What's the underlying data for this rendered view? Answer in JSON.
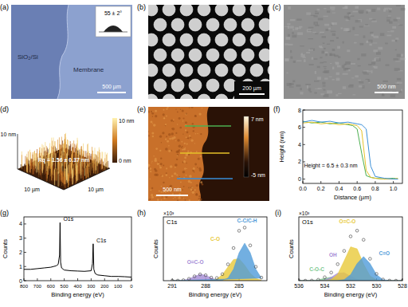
{
  "panels": [
    {
      "label": "(a)",
      "substrate": "SiO₂/Si",
      "membrane": "Membrane",
      "scale_bar": "500 µm",
      "contact_angle": "55 ± 2°"
    },
    {
      "label": "(b)",
      "scale_bar": "200 µm"
    },
    {
      "label": "(c)",
      "scale_bar": "500 nm"
    },
    {
      "label": "(d)",
      "z_axis": "10 nm",
      "x_axis": "10 µm",
      "y_axis": "10 µm",
      "roughness": "Rq = 1.56 ± 0.37 nm",
      "colorbar_max": "10 nm",
      "colorbar_min": "0 nm"
    },
    {
      "label": "(e)",
      "colorbar_max": "7 nm",
      "colorbar_min": "-5 nm",
      "scale_bar": "500 nm"
    }
  ],
  "chart_data": [
    {
      "label": "(f)",
      "type": "line",
      "xlabel": "Distance (µm)",
      "ylabel": "Height (nm)",
      "x": [
        0,
        0.1,
        0.2,
        0.3,
        0.4,
        0.5,
        0.55,
        0.6,
        0.65,
        0.7,
        0.75,
        0.8,
        0.9,
        1.0,
        1.05
      ],
      "series": [
        {
          "color": "#4caf50",
          "values": [
            6.7,
            6.5,
            6.6,
            6.4,
            6.5,
            6.3,
            6.2,
            5.8,
            3.0,
            0.4,
            0.2,
            0.1,
            0.0,
            0.1,
            0.0
          ]
        },
        {
          "color": "#e6c229",
          "values": [
            6.5,
            6.6,
            6.4,
            6.5,
            6.3,
            6.4,
            6.3,
            6.2,
            5.6,
            1.0,
            0.2,
            0.1,
            0.0,
            0.0,
            0.1
          ]
        },
        {
          "color": "#3a8fd8",
          "values": [
            6.6,
            6.8,
            6.6,
            6.7,
            6.5,
            6.6,
            6.5,
            6.4,
            6.3,
            5.8,
            1.5,
            0.3,
            0.1,
            0.0,
            0.0
          ]
        }
      ],
      "xlim": [
        0,
        1.1
      ],
      "xticks": [
        {
          "value": 0,
          "label": "0.0"
        },
        {
          "value": 0.2,
          "label": "0.2"
        },
        {
          "value": 0.4,
          "label": "0.4"
        },
        {
          "value": 0.6,
          "label": "0.6"
        },
        {
          "value": 0.8,
          "label": "0.8"
        },
        {
          "value": 1,
          "label": "1.0"
        }
      ],
      "ylim": [
        -0.5,
        8
      ],
      "yticks": [
        0,
        2,
        4,
        6,
        8
      ],
      "annotations": [
        {
          "text": "Height = 6.5 ± 0.3 nm"
        }
      ]
    },
    {
      "label": "(g)",
      "type": "line",
      "xlabel": "Binding energy (eV)",
      "ylabel": "Counts",
      "x": [
        800,
        750,
        700,
        650,
        600,
        580,
        560,
        545,
        535,
        531,
        527,
        520,
        500,
        450,
        400,
        350,
        300,
        290,
        285,
        280,
        270,
        250,
        200,
        150,
        100,
        50,
        0
      ],
      "series": [
        {
          "color": "#000000",
          "values": [
            0.8,
            0.8,
            0.85,
            0.9,
            0.95,
            1.0,
            1.05,
            1.15,
            1.8,
            4.1,
            1.3,
            0.9,
            0.75,
            0.7,
            0.68,
            0.66,
            0.7,
            1.2,
            2.6,
            0.8,
            0.5,
            0.4,
            0.35,
            0.3,
            0.3,
            0.28,
            0.25
          ]
        }
      ],
      "xlim": [
        800,
        0
      ],
      "xticks": [
        800,
        700,
        600,
        500,
        400,
        300,
        200,
        100,
        0
      ],
      "ylim": [
        0,
        4.5
      ],
      "yticks": [
        0,
        1,
        2,
        3,
        4
      ],
      "annotations": [
        {
          "text": "O1s",
          "x": 531,
          "y": 4.1
        },
        {
          "text": "C1s",
          "x": 285,
          "y": 2.6
        }
      ]
    },
    {
      "label": "(h)",
      "type": "line",
      "title": "C1s",
      "exponent": "×10³",
      "xlabel": "Binding energy (eV)",
      "ylabel": "Counts",
      "tick_labels": "x",
      "x": [
        291,
        290.5,
        290,
        289.5,
        289,
        288.5,
        288,
        287.5,
        287,
        286.5,
        286,
        285.5,
        285,
        284.5,
        284,
        283.5,
        283
      ],
      "series": [
        {
          "name": "O=C-O",
          "type": "area",
          "color": "#a58bd6",
          "values": [
            0,
            0.01,
            0.07,
            0.26,
            0.62,
            0.89,
            0.77,
            0.39,
            0.12,
            0.02,
            0,
            0,
            0,
            0,
            0,
            0,
            0
          ]
        },
        {
          "name": "C-O",
          "type": "area",
          "color": "#e8c93a",
          "values": [
            0,
            0,
            0,
            0,
            0,
            0,
            0,
            0.05,
            0.26,
            0.85,
            1.94,
            2.98,
            3.1,
            2.19,
            1.04,
            0.33,
            0.07
          ]
        },
        {
          "name": "C-C/C-H",
          "type": "area",
          "color": "#4f9bd9",
          "values": [
            0,
            0,
            0,
            0,
            0,
            0,
            0,
            0,
            0,
            0.05,
            0.37,
            1.63,
            3.94,
            5.3,
            3.94,
            1.63,
            0.37
          ]
        },
        {
          "type": "scatter",
          "marker": "circle",
          "color": "#555555",
          "values": [
            0,
            0.01,
            0.07,
            0.26,
            0.62,
            0.89,
            0.77,
            0.44,
            0.38,
            0.92,
            2.31,
            4.61,
            7.04,
            7.49,
            4.98,
            1.96,
            0.44
          ]
        }
      ],
      "xlim": [
        291.8,
        282.5
      ],
      "xticks": [
        291,
        288,
        285
      ],
      "ylim": [
        0,
        9
      ],
      "yticks": []
    },
    {
      "label": "(i)",
      "type": "line",
      "title": "O1s",
      "exponent": "×10³",
      "xlabel": "Binding energy (eV)",
      "ylabel": "Counts",
      "tick_labels": "x",
      "x": [
        536,
        535.5,
        535,
        534.5,
        534,
        533.5,
        533,
        532.5,
        532,
        531.5,
        531,
        530.5,
        530,
        529.5,
        529,
        528.5,
        528
      ],
      "series": [
        {
          "name": "C-O-C",
          "type": "area",
          "color": "#7cc98e",
          "values": [
            0,
            0,
            0.02,
            0.12,
            0.35,
            0.5,
            0.35,
            0.12,
            0.02,
            0,
            0,
            0,
            0,
            0,
            0,
            0,
            0
          ]
        },
        {
          "name": "OH",
          "type": "area",
          "color": "#a58bd6",
          "values": [
            0,
            0,
            0,
            0.01,
            0.11,
            0.49,
            1.06,
            1.13,
            0.61,
            0.16,
            0.02,
            0,
            0,
            0,
            0,
            0,
            0
          ]
        },
        {
          "name": "O=C-O",
          "type": "area",
          "color": "#e8c93a",
          "values": [
            0,
            0,
            0,
            0,
            0.02,
            0.16,
            0.91,
            2.8,
            4.77,
            4.49,
            2.35,
            0.68,
            0.11,
            0.01,
            0,
            0,
            0
          ]
        },
        {
          "name": "C=O",
          "type": "area",
          "color": "#4f9bd9",
          "values": [
            0,
            0,
            0,
            0,
            0,
            0,
            0.01,
            0.15,
            0.85,
            2.41,
            3.4,
            2.41,
            0.85,
            0.15,
            0.01,
            0,
            0
          ]
        },
        {
          "type": "scatter",
          "marker": "circle",
          "color": "#555555",
          "values": [
            0,
            0,
            0.02,
            0.13,
            0.48,
            1.15,
            2.33,
            4.2,
            6.25,
            7.06,
            5.77,
            3.09,
            0.96,
            0.16,
            0.01,
            0,
            0
          ]
        }
      ],
      "xlim": [
        536,
        528
      ],
      "xticks": [
        536,
        534,
        532,
        530,
        528
      ],
      "ylim": [
        0,
        9
      ],
      "yticks": []
    }
  ]
}
